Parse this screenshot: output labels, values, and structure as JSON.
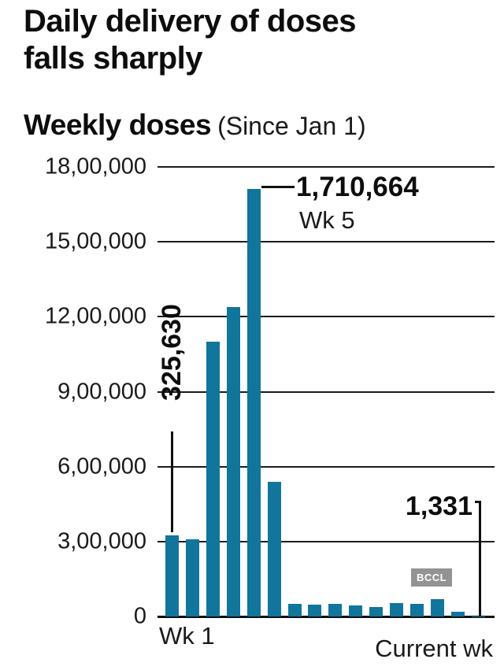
{
  "header": {
    "title_line1": "Daily delivery of doses",
    "title_line2": "falls sharply"
  },
  "subtitle": {
    "main": "Weekly doses",
    "note": "(Since Jan 1)"
  },
  "watermark": "BCCL",
  "annotations": {
    "week1_value": "325,630",
    "peak_value": "1,710,664",
    "peak_label": "Wk 5",
    "current_value": "1,331"
  },
  "xaxis": {
    "left_label": "Wk 1",
    "right_label": "Current wk"
  },
  "chart_data": {
    "type": "bar",
    "title": "Weekly doses (Since Jan 1)",
    "categories": [
      "Wk 1",
      "",
      "",
      "",
      "Wk 5",
      "",
      "",
      "",
      "",
      "",
      "",
      "",
      "",
      "",
      "",
      "Current wk"
    ],
    "values": [
      325630,
      310000,
      1100000,
      1240000,
      1710664,
      540000,
      50000,
      48000,
      50000,
      45000,
      38000,
      55000,
      50000,
      68000,
      20000,
      1331
    ],
    "ylim": [
      0,
      1800000
    ],
    "yticks": [
      {
        "value": 1800000,
        "label": "18,00,000"
      },
      {
        "value": 1500000,
        "label": "15,00,000"
      },
      {
        "value": 1200000,
        "label": "12,00,000"
      },
      {
        "value": 900000,
        "label": "9,00,000"
      },
      {
        "value": 600000,
        "label": "6,00,000"
      },
      {
        "value": 300000,
        "label": "3,00,000"
      },
      {
        "value": 0,
        "label": "0"
      }
    ],
    "bar_color": "#11759c",
    "grid": true,
    "legend": false,
    "data_labels": [
      {
        "category": "Wk 1",
        "text": "325,630"
      },
      {
        "category": "Wk 5",
        "text": "1,710,664"
      },
      {
        "category": "Current wk",
        "text": "1,331"
      }
    ]
  }
}
